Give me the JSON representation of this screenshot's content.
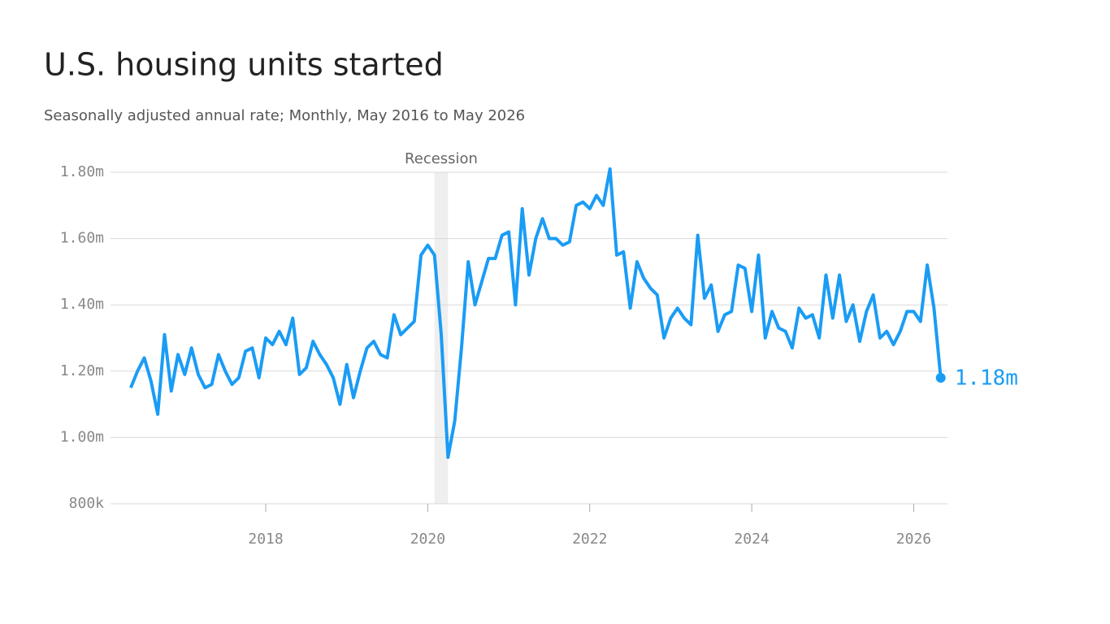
{
  "chart_data": {
    "type": "line",
    "title": "U.S. housing units started",
    "subtitle": "Seasonally adjusted annual rate; Monthly, May 2016 to May 2026",
    "x": [
      "2016-05",
      "2016-06",
      "2016-07",
      "2016-08",
      "2016-09",
      "2016-10",
      "2016-11",
      "2016-12",
      "2017-01",
      "2017-02",
      "2017-03",
      "2017-04",
      "2017-05",
      "2017-06",
      "2017-07",
      "2017-08",
      "2017-09",
      "2017-10",
      "2017-11",
      "2017-12",
      "2018-01",
      "2018-02",
      "2018-03",
      "2018-04",
      "2018-05",
      "2018-06",
      "2018-07",
      "2018-08",
      "2018-09",
      "2018-10",
      "2018-11",
      "2018-12",
      "2019-01",
      "2019-02",
      "2019-03",
      "2019-04",
      "2019-05",
      "2019-06",
      "2019-07",
      "2019-08",
      "2019-09",
      "2019-10",
      "2019-11",
      "2019-12",
      "2020-01",
      "2020-02",
      "2020-03",
      "2020-04",
      "2020-05",
      "2020-06",
      "2020-07",
      "2020-08",
      "2020-09",
      "2020-10",
      "2020-11",
      "2020-12",
      "2021-01",
      "2021-02",
      "2021-03",
      "2021-04",
      "2021-05",
      "2021-06",
      "2021-07",
      "2021-08",
      "2021-09",
      "2021-10",
      "2021-11",
      "2021-12",
      "2022-01",
      "2022-02",
      "2022-03",
      "2022-04",
      "2022-05",
      "2022-06",
      "2022-07",
      "2022-08",
      "2022-09",
      "2022-10",
      "2022-11",
      "2022-12",
      "2023-01",
      "2023-02",
      "2023-03",
      "2023-04",
      "2023-05",
      "2023-06",
      "2023-07",
      "2023-08",
      "2023-09",
      "2023-10",
      "2023-11",
      "2023-12",
      "2024-01",
      "2024-02",
      "2024-03",
      "2024-04",
      "2024-05",
      "2024-06",
      "2024-07",
      "2024-08",
      "2024-09",
      "2024-10",
      "2024-11",
      "2024-12",
      "2025-01",
      "2025-02",
      "2025-03",
      "2025-04",
      "2025-05",
      "2025-06",
      "2025-07",
      "2025-08",
      "2025-09",
      "2025-10",
      "2025-11",
      "2025-12",
      "2026-01",
      "2026-02",
      "2026-03",
      "2026-04",
      "2026-05"
    ],
    "values": [
      1150000,
      1200000,
      1240000,
      1170000,
      1070000,
      1310000,
      1140000,
      1250000,
      1190000,
      1270000,
      1190000,
      1150000,
      1160000,
      1250000,
      1200000,
      1160000,
      1180000,
      1260000,
      1270000,
      1180000,
      1300000,
      1280000,
      1320000,
      1280000,
      1360000,
      1190000,
      1210000,
      1290000,
      1250000,
      1220000,
      1180000,
      1100000,
      1220000,
      1120000,
      1200000,
      1270000,
      1290000,
      1250000,
      1240000,
      1370000,
      1310000,
      1330000,
      1350000,
      1550000,
      1580000,
      1550000,
      1310000,
      940000,
      1050000,
      1270000,
      1530000,
      1400000,
      1470000,
      1540000,
      1540000,
      1610000,
      1620000,
      1400000,
      1690000,
      1490000,
      1600000,
      1660000,
      1600000,
      1600000,
      1580000,
      1590000,
      1700000,
      1710000,
      1690000,
      1730000,
      1700000,
      1810000,
      1550000,
      1560000,
      1390000,
      1530000,
      1480000,
      1450000,
      1430000,
      1300000,
      1360000,
      1390000,
      1360000,
      1340000,
      1610000,
      1420000,
      1460000,
      1320000,
      1370000,
      1380000,
      1520000,
      1510000,
      1380000,
      1550000,
      1300000,
      1380000,
      1330000,
      1320000,
      1270000,
      1390000,
      1360000,
      1370000,
      1300000,
      1490000,
      1360000,
      1490000,
      1350000,
      1400000,
      1290000,
      1380000,
      1430000,
      1300000,
      1320000,
      1280000,
      1320000,
      1380000,
      1380000,
      1350000,
      1520000,
      1390000,
      1180000
    ],
    "value_labels": [
      null,
      null,
      null,
      null,
      null,
      null,
      null,
      null,
      null,
      null,
      null,
      null,
      null,
      null,
      null,
      null,
      null,
      null,
      null,
      null,
      null,
      null,
      null,
      null,
      null,
      null,
      null,
      null,
      null,
      null,
      null,
      null,
      null,
      null,
      null,
      null,
      null,
      null,
      null,
      null,
      null,
      null,
      null,
      null,
      null,
      null,
      null,
      null,
      null,
      null,
      null,
      null,
      null,
      null,
      null,
      null,
      null,
      null,
      null,
      null,
      null,
      null,
      null,
      null,
      null,
      null,
      null,
      null,
      null,
      null,
      null,
      null,
      null,
      null,
      null,
      null,
      null,
      null,
      null,
      null,
      null,
      null,
      null,
      null,
      null,
      null,
      null,
      null,
      null,
      null,
      null,
      null,
      null,
      null,
      null,
      null,
      null,
      null,
      null,
      null,
      null,
      null,
      null,
      null,
      null,
      null,
      null,
      null,
      null,
      null,
      null,
      null,
      null,
      null,
      null,
      null,
      null,
      null,
      null,
      null,
      "1.18m"
    ],
    "color": "#1a9cf5",
    "xlim": [
      "2016-02",
      "2026-06"
    ],
    "xticks": [
      "2018",
      "2020",
      "2022",
      "2024",
      "2026"
    ],
    "ylim": [
      800000,
      1800000
    ],
    "yticks": [
      {
        "value": 800000,
        "label": "800k"
      },
      {
        "value": 1000000,
        "label": "1.00m"
      },
      {
        "value": 1200000,
        "label": "1.20m"
      },
      {
        "value": 1400000,
        "label": "1.40m"
      },
      {
        "value": 1600000,
        "label": "1.60m"
      },
      {
        "value": 1800000,
        "label": "1.80m"
      }
    ],
    "grid": true,
    "recession": {
      "label": "Recession",
      "start": "2020-02",
      "end": "2020-04"
    }
  }
}
